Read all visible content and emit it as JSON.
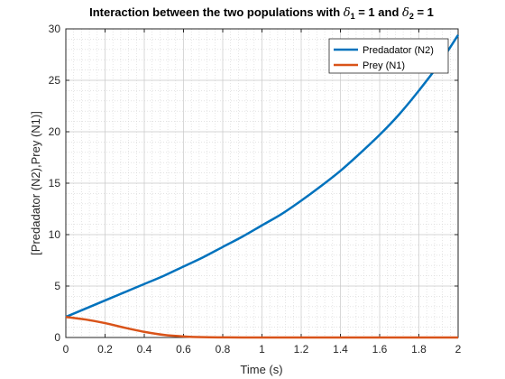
{
  "chart_data": {
    "type": "line",
    "title": {
      "prefix": "Interaction between the two populations with ",
      "sym1": "δ",
      "sub1": "1",
      "mid": " = 1 and ",
      "sym2": "δ",
      "sub2": "2",
      "suffix": " = 1"
    },
    "xlabel": "Time (s)",
    "ylabel": "[Predadator (N2),Prey (N1)]",
    "xlim": [
      0,
      2
    ],
    "ylim": [
      0,
      30
    ],
    "xticks": [
      "0",
      "0.2",
      "0.4",
      "0.6",
      "0.8",
      "1",
      "1.2",
      "1.4",
      "1.6",
      "1.8",
      "2"
    ],
    "yticks": [
      "0",
      "5",
      "10",
      "15",
      "20",
      "25",
      "30"
    ],
    "grid": true,
    "minor_grid": true,
    "legend_position": "top-right",
    "x": [
      0,
      0.1,
      0.2,
      0.3,
      0.4,
      0.5,
      0.6,
      0.7,
      0.8,
      0.9,
      1.0,
      1.1,
      1.2,
      1.3,
      1.4,
      1.5,
      1.6,
      1.7,
      1.8,
      1.9,
      2.0
    ],
    "series": [
      {
        "name": "Predadator (N2)",
        "color": "#0072BD",
        "values": [
          2.0,
          2.8,
          3.6,
          4.4,
          5.2,
          6.0,
          6.9,
          7.8,
          8.8,
          9.8,
          10.9,
          12.0,
          13.3,
          14.7,
          16.2,
          17.9,
          19.7,
          21.7,
          24.0,
          26.5,
          29.4
        ]
      },
      {
        "name": "Prey (N1)",
        "color": "#D95319",
        "values": [
          2.0,
          1.75,
          1.4,
          0.95,
          0.55,
          0.25,
          0.1,
          0.03,
          0.01,
          0.0,
          0.0,
          0.0,
          0.0,
          0.0,
          0.0,
          0.0,
          0.0,
          0.0,
          0.0,
          0.0,
          0.0
        ]
      }
    ]
  }
}
